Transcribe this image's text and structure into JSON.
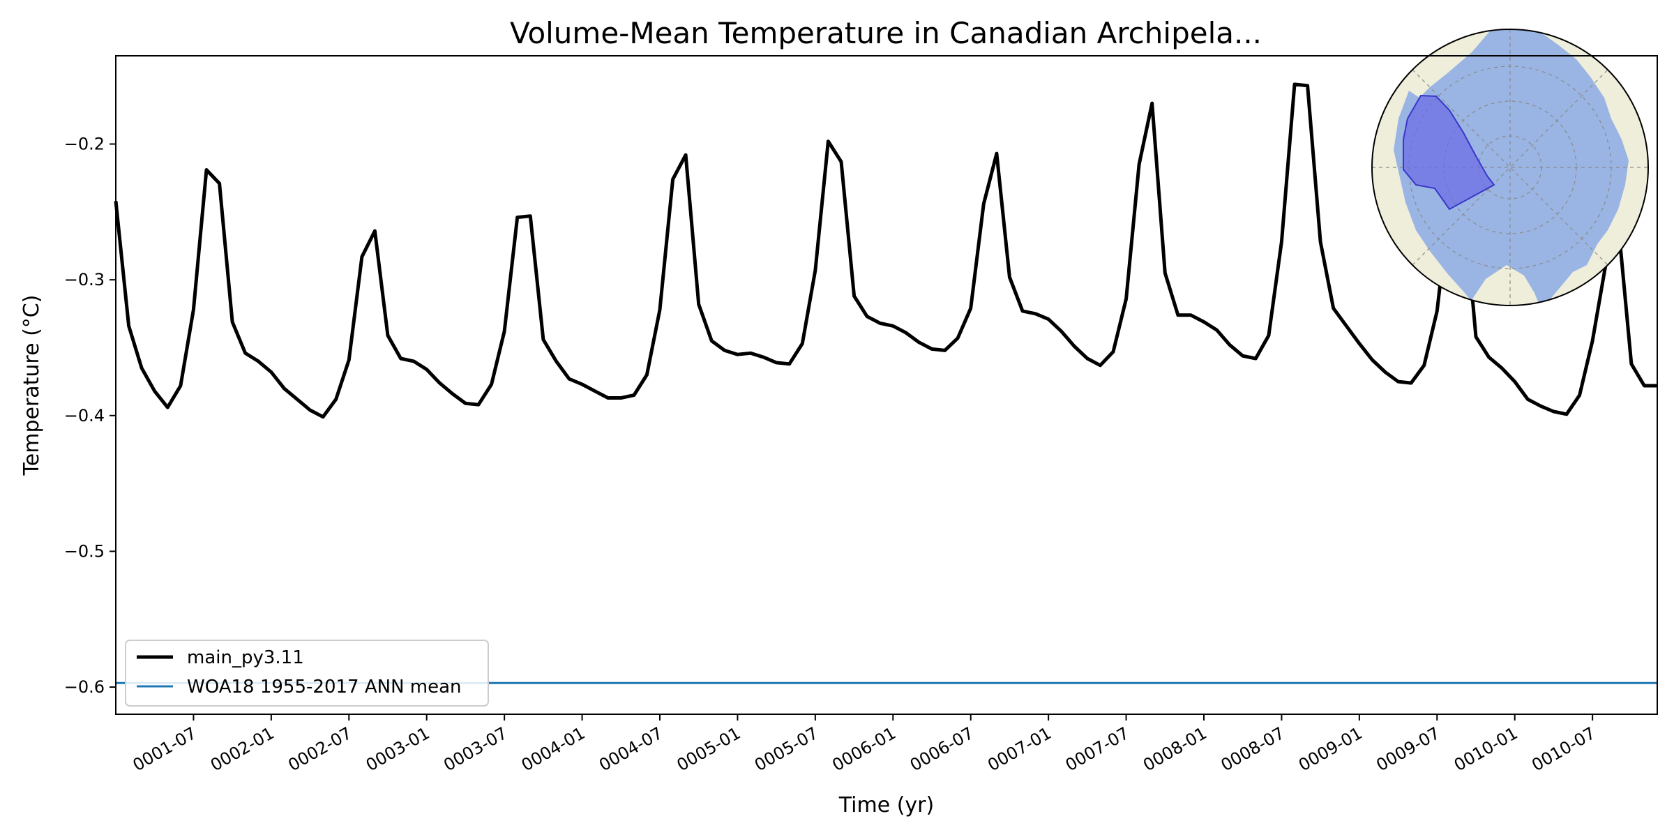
{
  "chart_data": {
    "type": "line",
    "title": "Volume-Mean Temperature in Canadian Archipela...",
    "xlabel": "Time (yr)",
    "ylabel": "Temperature (°C)",
    "ylim": [
      -0.62,
      -0.135
    ],
    "xlim": [
      1,
      120
    ],
    "x_unit": "month index (month 1 = 0001-01)",
    "yticks": [
      -0.6,
      -0.5,
      -0.4,
      -0.3,
      -0.2
    ],
    "ytick_labels": [
      "−0.6",
      "−0.5",
      "−0.4",
      "−0.3",
      "−0.2"
    ],
    "xticks": [
      7,
      13,
      19,
      25,
      31,
      37,
      43,
      49,
      55,
      61,
      67,
      73,
      79,
      85,
      91,
      97,
      103,
      109,
      115
    ],
    "xtick_labels": [
      "0001-07",
      "0002-01",
      "0002-07",
      "0003-01",
      "0003-07",
      "0004-01",
      "0004-07",
      "0005-01",
      "0005-07",
      "0006-01",
      "0006-07",
      "0007-01",
      "0007-07",
      "0008-01",
      "0008-07",
      "0009-01",
      "0009-07",
      "0010-01",
      "0010-07"
    ],
    "grid": false,
    "legend_position": "lower-left",
    "series": [
      {
        "name": "main_py3.11",
        "color": "#000000",
        "x": [
          1,
          2,
          3,
          4,
          5,
          6,
          7,
          8,
          9,
          10,
          11,
          12,
          13,
          14,
          15,
          16,
          17,
          18,
          19,
          20,
          21,
          22,
          23,
          24,
          25,
          26,
          27,
          28,
          29,
          30,
          31,
          32,
          33,
          34,
          35,
          36,
          37,
          38,
          39,
          40,
          41,
          42,
          43,
          44,
          45,
          46,
          47,
          48,
          49,
          50,
          51,
          52,
          53,
          54,
          55,
          56,
          57,
          58,
          59,
          60,
          61,
          62,
          63,
          64,
          65,
          66,
          67,
          68,
          69,
          70,
          71,
          72,
          73,
          74,
          75,
          76,
          77,
          78,
          79,
          80,
          81,
          82,
          83,
          84,
          85,
          86,
          87,
          88,
          89,
          90,
          91,
          92,
          93,
          94,
          95,
          96,
          97,
          98,
          99,
          100,
          101,
          102,
          103,
          104,
          105,
          106,
          107,
          108,
          109,
          110,
          111,
          112,
          113,
          114,
          115,
          116,
          117,
          118,
          119,
          120
        ],
        "values": [
          -0.242,
          -0.334,
          -0.365,
          -0.382,
          -0.394,
          -0.378,
          -0.322,
          -0.219,
          -0.229,
          -0.331,
          -0.354,
          -0.36,
          -0.368,
          -0.38,
          -0.388,
          -0.396,
          -0.401,
          -0.388,
          -0.359,
          -0.283,
          -0.264,
          -0.341,
          -0.358,
          -0.36,
          -0.366,
          -0.376,
          -0.384,
          -0.391,
          -0.392,
          -0.377,
          -0.338,
          -0.254,
          -0.253,
          -0.344,
          -0.36,
          -0.373,
          -0.377,
          -0.382,
          -0.387,
          -0.387,
          -0.385,
          -0.37,
          -0.322,
          -0.226,
          -0.208,
          -0.318,
          -0.345,
          -0.352,
          -0.355,
          -0.354,
          -0.357,
          -0.361,
          -0.362,
          -0.347,
          -0.293,
          -0.198,
          -0.213,
          -0.312,
          -0.327,
          -0.332,
          -0.334,
          -0.339,
          -0.346,
          -0.351,
          -0.352,
          -0.343,
          -0.321,
          -0.244,
          -0.207,
          -0.298,
          -0.323,
          -0.325,
          -0.329,
          -0.338,
          -0.349,
          -0.358,
          -0.363,
          -0.353,
          -0.314,
          -0.215,
          -0.17,
          -0.295,
          -0.326,
          -0.326,
          -0.331,
          -0.337,
          -0.348,
          -0.356,
          -0.358,
          -0.341,
          -0.272,
          -0.156,
          -0.157,
          -0.272,
          -0.321,
          -0.334,
          -0.347,
          -0.359,
          -0.368,
          -0.375,
          -0.376,
          -0.363,
          -0.323,
          -0.24,
          -0.235,
          -0.342,
          -0.357,
          -0.365,
          -0.375,
          -0.388,
          -0.393,
          -0.397,
          -0.399,
          -0.385,
          -0.345,
          -0.29,
          -0.26,
          -0.362,
          -0.378,
          -0.378
        ]
      },
      {
        "name": "WOA18 1955-2017 ANN mean",
        "color": "#1f77b4",
        "value": -0.597
      }
    ],
    "inset_map": {
      "projection": "north-polar-stereographic",
      "ocean_color": "#9ab5e3",
      "land_color": "#efeedb",
      "region_color": "#6b6be6",
      "region": "Canadian Archipelago"
    }
  }
}
